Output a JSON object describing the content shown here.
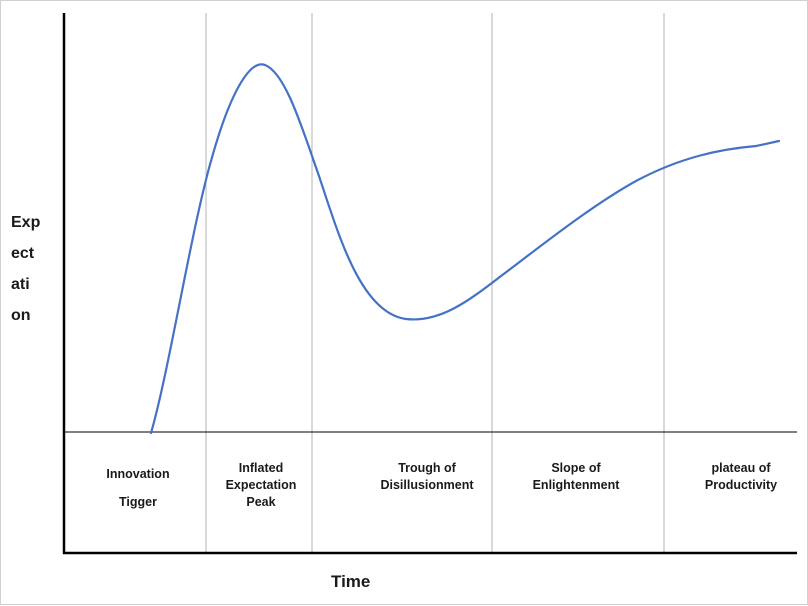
{
  "axes": {
    "y_label": "Expectation",
    "y_label_lines": [
      "Exp",
      "ect",
      "ati",
      "on"
    ],
    "x_label": "Time"
  },
  "phases": [
    {
      "label": "Innovation\nTigger"
    },
    {
      "label": "Inflated\nExpectation\nPeak"
    },
    {
      "label": "Trough of\nDisillusionment"
    },
    {
      "label": "Slope of\nEnlightenment"
    },
    {
      "label": "plateau of\nProductivity"
    }
  ],
  "colors": {
    "curve": "#4472c4",
    "axis": "#000000",
    "divider": "#b3b3b3"
  }
}
